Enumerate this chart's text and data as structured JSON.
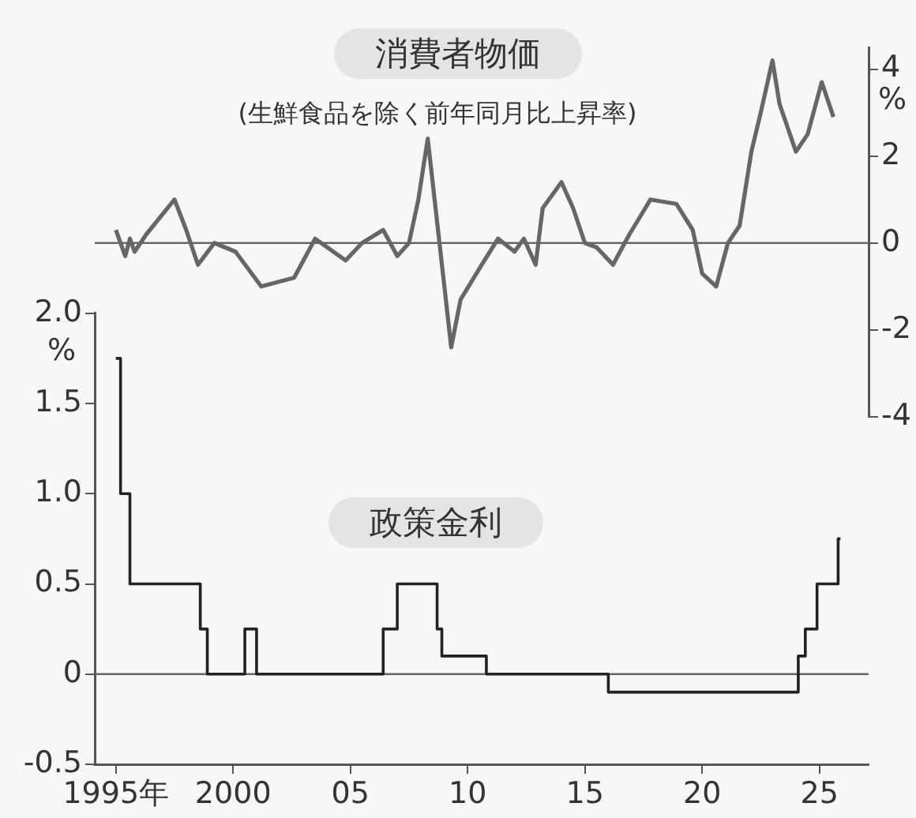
{
  "chart_data": [
    {
      "type": "line",
      "title": "消費者物価",
      "subtitle": "(生鮮食品を除く前年同月比上昇率)",
      "y2label": "%",
      "xlim": [
        1994.1,
        2027.1
      ],
      "y2lim": [
        -4,
        4.5
      ],
      "y2ticks": [
        -4,
        -2,
        0,
        2,
        4
      ],
      "tick_labels": "y",
      "grid": false,
      "ref_lines": [
        {
          "axis": "y2",
          "value": 0,
          "color": "#666666"
        }
      ],
      "series": [
        {
          "color": "#666666",
          "axis": "y2",
          "x": [
            1995.0,
            1995.4,
            1995.6,
            1995.8,
            1996.3,
            1997.5,
            1998.0,
            1998.5,
            1999.2,
            2000.1,
            2001.2,
            2002.6,
            2003.5,
            2004.8,
            2005.5,
            2006.4,
            2007.0,
            2007.5,
            2007.9,
            2008.3,
            2008.8,
            2009.3,
            2009.7,
            2010.6,
            2011.3,
            2012.0,
            2012.4,
            2012.9,
            2013.2,
            2014.0,
            2014.5,
            2015.0,
            2015.5,
            2016.2,
            2016.9,
            2017.8,
            2018.9,
            2019.6,
            2020.0,
            2020.6,
            2021.1,
            2021.6,
            2022.1,
            2022.5,
            2023.0,
            2023.3,
            2024.0,
            2024.5,
            2025.1,
            2025.6
          ],
          "values": [
            0.3,
            -0.3,
            0.1,
            -0.2,
            0.2,
            1.0,
            0.3,
            -0.5,
            0.0,
            -0.2,
            -1.0,
            -0.8,
            0.1,
            -0.4,
            0.0,
            0.3,
            -0.3,
            0.0,
            1.0,
            2.4,
            0.0,
            -2.4,
            -1.3,
            -0.5,
            0.1,
            -0.2,
            0.1,
            -0.5,
            0.8,
            1.4,
            0.8,
            0.0,
            -0.1,
            -0.5,
            0.2,
            1.0,
            0.9,
            0.3,
            -0.7,
            -1.0,
            0.0,
            0.4,
            2.1,
            3.0,
            4.2,
            3.2,
            2.1,
            2.5,
            3.7,
            2.9
          ]
        }
      ]
    },
    {
      "type": "step",
      "title": "政策金利",
      "ylabel": "%",
      "xlim": [
        1994.1,
        2027.1
      ],
      "ylim": [
        -0.5,
        2.0
      ],
      "xticks": [
        {
          "value": 1995,
          "label": "1995年"
        },
        2000,
        {
          "value": 2005,
          "label": "05"
        },
        {
          "value": 2010,
          "label": "10"
        },
        {
          "value": 2015,
          "label": "15"
        },
        {
          "value": 2020,
          "label": "20"
        },
        {
          "value": 2025,
          "label": "25"
        }
      ],
      "yticks": [
        -0.5,
        0,
        0.5,
        {
          "value": 1,
          "label": "1.0"
        },
        1.5,
        {
          "value": 2,
          "label": "2.0"
        }
      ],
      "grid": false,
      "ref_lines": [
        {
          "axis": "y",
          "value": 0,
          "color": "#666666"
        }
      ],
      "x": [
        1995.0,
        1995.2,
        1995.6,
        1998.6,
        1998.9,
        2000.5,
        2001.0,
        2006.4,
        2007.0,
        2008.7,
        2008.9,
        2010.8,
        2016.0,
        2024.1,
        2024.4,
        2024.9,
        2025.8,
        2025.9
      ],
      "values": [
        1.75,
        1.0,
        0.5,
        0.25,
        0,
        0.25,
        0,
        0.25,
        0.5,
        0.25,
        0.1,
        0,
        -0.1,
        0.1,
        0.25,
        0.5,
        0.75,
        0.75
      ],
      "color": "#222222"
    }
  ]
}
